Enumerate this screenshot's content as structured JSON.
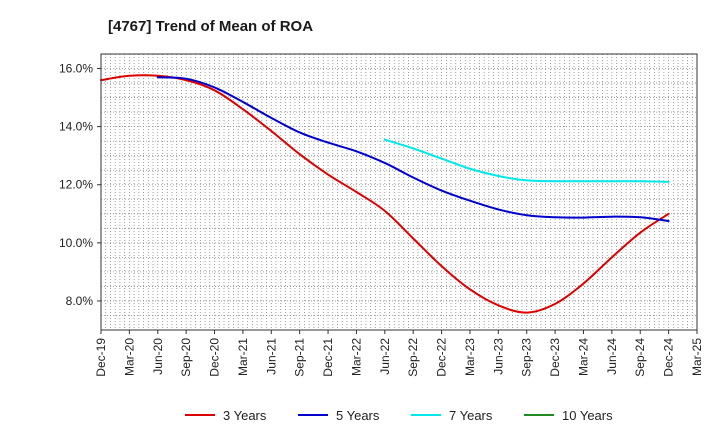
{
  "chart_data": {
    "type": "line",
    "title": "[4767]  Trend of Mean of ROA",
    "xlabel": "",
    "ylabel": "",
    "categories": [
      "Dec-19",
      "Mar-20",
      "Jun-20",
      "Sep-20",
      "Dec-20",
      "Mar-21",
      "Jun-21",
      "Sep-21",
      "Dec-21",
      "Mar-22",
      "Jun-22",
      "Sep-22",
      "Dec-22",
      "Mar-23",
      "Jun-23",
      "Sep-23",
      "Dec-23",
      "Mar-24",
      "Jun-24",
      "Sep-24",
      "Dec-24",
      "Mar-25"
    ],
    "ylim": [
      7.0,
      16.5
    ],
    "yticks": [
      8.0,
      10.0,
      12.0,
      14.0,
      16.0
    ],
    "ytick_labels": [
      "8.0%",
      "10.0%",
      "12.0%",
      "14.0%",
      "16.0%"
    ],
    "grid": true,
    "legend_position": "bottom",
    "series": [
      {
        "name": "3 Years",
        "color": "#dd0000",
        "values": [
          15.6,
          15.75,
          15.75,
          15.6,
          15.25,
          14.6,
          13.85,
          13.05,
          12.35,
          11.75,
          11.1,
          10.15,
          9.2,
          8.4,
          7.85,
          7.6,
          7.9,
          8.6,
          9.5,
          10.35,
          11.0,
          null
        ]
      },
      {
        "name": "5 Years",
        "color": "#0000cc",
        "values": [
          null,
          null,
          15.7,
          15.65,
          15.35,
          14.85,
          14.3,
          13.8,
          13.45,
          13.15,
          12.75,
          12.25,
          11.8,
          11.45,
          11.15,
          10.95,
          10.88,
          10.87,
          10.9,
          10.88,
          10.75,
          null
        ]
      },
      {
        "name": "7 Years",
        "color": "#00e8e8",
        "values": [
          null,
          null,
          null,
          null,
          null,
          null,
          null,
          null,
          null,
          null,
          13.55,
          13.25,
          12.9,
          12.55,
          12.3,
          12.15,
          12.12,
          12.12,
          12.12,
          12.12,
          12.1,
          null
        ]
      },
      {
        "name": "10 Years",
        "color": "#228822",
        "values": [
          null,
          null,
          null,
          null,
          null,
          null,
          null,
          null,
          null,
          null,
          null,
          null,
          null,
          null,
          null,
          null,
          null,
          null,
          null,
          null,
          null,
          null
        ]
      }
    ]
  }
}
